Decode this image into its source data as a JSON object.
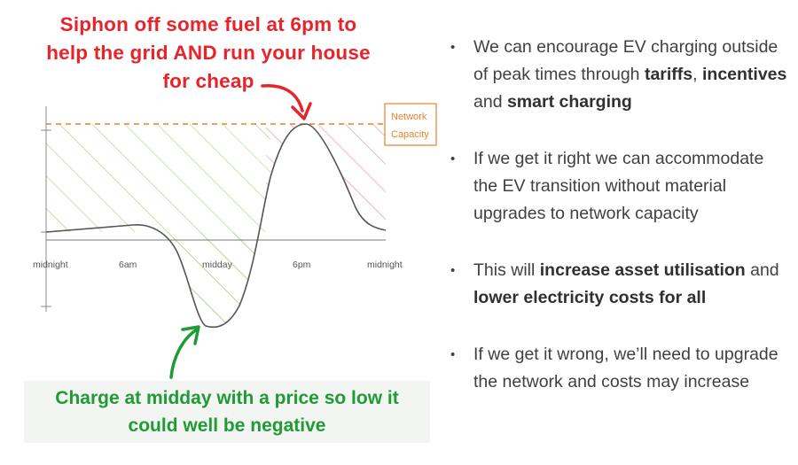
{
  "callouts": {
    "top_lines": [
      "Siphon off some fuel at 6pm to",
      "help the grid AND run your house",
      "for cheap"
    ],
    "bottom_lines": [
      "Charge at midday with a price so low it",
      "could well be negative"
    ]
  },
  "chart_data": {
    "type": "line",
    "x_tick_labels": [
      "midnight",
      "6am",
      "midday",
      "6pm",
      "midnight"
    ],
    "capacity_label_lines": [
      "Network",
      "Capacity"
    ]
  },
  "bullets": [
    {
      "segments": [
        {
          "text": "We can encourage EV charging outside of peak times through ",
          "bold": false
        },
        {
          "text": "tariffs",
          "bold": true
        },
        {
          "text": ", ",
          "bold": false
        },
        {
          "text": "incentives",
          "bold": true
        },
        {
          "text": " and ",
          "bold": false
        },
        {
          "text": "smart charging",
          "bold": true
        }
      ]
    },
    {
      "segments": [
        {
          "text": "If we get it right we can accommodate the EV transition without material upgrades to network capacity",
          "bold": false
        }
      ]
    },
    {
      "segments": [
        {
          "text": "This will ",
          "bold": false
        },
        {
          "text": "increase asset utilisation",
          "bold": true
        },
        {
          "text": " and ",
          "bold": false
        },
        {
          "text": "lower electricity costs for all",
          "bold": true
        }
      ]
    },
    {
      "segments": [
        {
          "text": "If we get it wrong, we’ll need to upgrade the network and costs may increase",
          "bold": false
        }
      ]
    }
  ],
  "colors": {
    "red": "#e8232a",
    "green": "#1e9b34",
    "hatch_green": "#9fcf7c",
    "hatch_red": "#ef8a8a",
    "capacity_orange": "#e8822a",
    "curve": "#555555"
  }
}
